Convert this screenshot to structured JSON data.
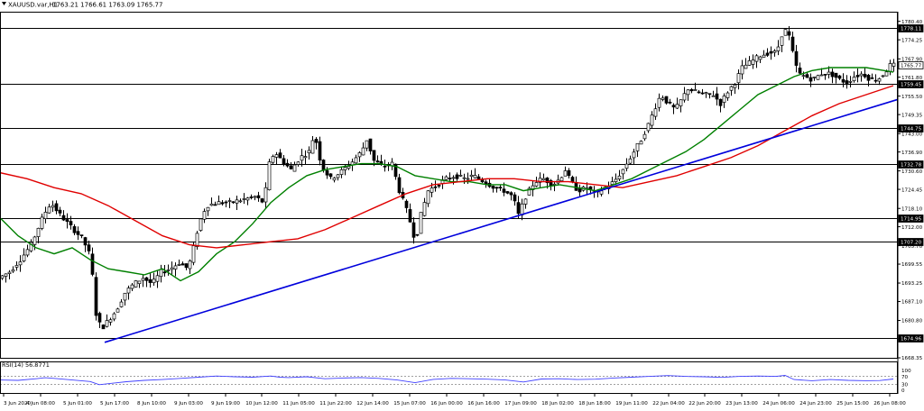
{
  "header": {
    "symbol": "XAUUSD.var,H1",
    "ohlc": "1763.21 1766.61 1763.09 1765.77"
  },
  "rsi_panel": {
    "label": "RSI(14) 56.8771",
    "scale_labels": [
      "100",
      "70",
      "30",
      "0"
    ]
  },
  "chart_data": [
    {
      "type": "line",
      "subtype": "candlestick",
      "title": "XAUUSD.var,H1",
      "ohlc_readout": {
        "open": 1763.21,
        "high": 1766.61,
        "low": 1763.09,
        "close": 1765.77
      },
      "y_axis_position": "right",
      "ylim": [
        1668.35,
        1783.6
      ],
      "y_ticks": [
        1780.4,
        1774.25,
        1767.9,
        1761.8,
        1755.5,
        1749.35,
        1743.0,
        1736.9,
        1730.6,
        1724.45,
        1718.1,
        1712.0,
        1705.7,
        1699.55,
        1693.25,
        1687.1,
        1680.8,
        1674.6,
        1668.35
      ],
      "x_labels": [
        "3 Jun 2020",
        "4 Jun 08:00",
        "5 Jun 01:00",
        "5 Jun 17:00",
        "8 Jun 10:00",
        "9 Jun 03:00",
        "9 Jun 19:00",
        "10 Jun 12:00",
        "11 Jun 05:00",
        "11 Jun 22:00",
        "12 Jun 14:00",
        "15 Jun 07:00",
        "16 Jun 00:00",
        "16 Jun 16:00",
        "17 Jun 09:00",
        "18 Jun 02:00",
        "18 Jun 18:00",
        "19 Jun 11:00",
        "22 Jun 04:00",
        "22 Jun 20:00",
        "23 Jun 13:00",
        "24 Jun 06:00",
        "24 Jun 23:00",
        "25 Jun 15:00",
        "26 Jun 08:00"
      ],
      "price_points": [
        [
          0,
          1694.5
        ],
        [
          14,
          1697
        ],
        [
          26,
          1701
        ],
        [
          38,
          1706
        ],
        [
          52,
          1716
        ],
        [
          60,
          1720
        ],
        [
          70,
          1716
        ],
        [
          82,
          1712
        ],
        [
          95,
          1708
        ],
        [
          104,
          1702
        ],
        [
          110,
          1683
        ],
        [
          116,
          1678
        ],
        [
          124,
          1681
        ],
        [
          132,
          1684
        ],
        [
          142,
          1690
        ],
        [
          152,
          1693
        ],
        [
          162,
          1695
        ],
        [
          172,
          1693
        ],
        [
          182,
          1697
        ],
        [
          192,
          1698
        ],
        [
          202,
          1700
        ],
        [
          212,
          1698
        ],
        [
          218,
          1705
        ],
        [
          224,
          1713
        ],
        [
          232,
          1719
        ],
        [
          244,
          1720
        ],
        [
          258,
          1720
        ],
        [
          272,
          1721
        ],
        [
          286,
          1722
        ],
        [
          296,
          1720
        ],
        [
          302,
          1733
        ],
        [
          308,
          1737
        ],
        [
          316,
          1734
        ],
        [
          326,
          1731
        ],
        [
          336,
          1735
        ],
        [
          346,
          1737
        ],
        [
          352,
          1743
        ],
        [
          360,
          1732
        ],
        [
          370,
          1728
        ],
        [
          380,
          1730
        ],
        [
          392,
          1733
        ],
        [
          404,
          1737
        ],
        [
          410,
          1741
        ],
        [
          418,
          1734
        ],
        [
          428,
          1732
        ],
        [
          438,
          1733
        ],
        [
          446,
          1724
        ],
        [
          456,
          1716
        ],
        [
          464,
          1707
        ],
        [
          470,
          1716
        ],
        [
          478,
          1724
        ],
        [
          488,
          1726
        ],
        [
          498,
          1728
        ],
        [
          508,
          1729
        ],
        [
          518,
          1728
        ],
        [
          528,
          1729
        ],
        [
          540,
          1727
        ],
        [
          552,
          1725
        ],
        [
          562,
          1724
        ],
        [
          572,
          1722
        ],
        [
          578,
          1716
        ],
        [
          586,
          1722
        ],
        [
          596,
          1727
        ],
        [
          606,
          1728
        ],
        [
          616,
          1726
        ],
        [
          624,
          1728
        ],
        [
          630,
          1731
        ],
        [
          636,
          1727
        ],
        [
          644,
          1724
        ],
        [
          654,
          1725
        ],
        [
          664,
          1723
        ],
        [
          674,
          1725
        ],
        [
          684,
          1727
        ],
        [
          694,
          1731
        ],
        [
          704,
          1736
        ],
        [
          714,
          1741
        ],
        [
          722,
          1746
        ],
        [
          730,
          1752
        ],
        [
          736,
          1756
        ],
        [
          744,
          1753
        ],
        [
          752,
          1751
        ],
        [
          760,
          1755
        ],
        [
          766,
          1758
        ],
        [
          774,
          1757
        ],
        [
          784,
          1756
        ],
        [
          794,
          1756
        ],
        [
          802,
          1753
        ],
        [
          810,
          1757
        ],
        [
          818,
          1760
        ],
        [
          826,
          1765
        ],
        [
          836,
          1767
        ],
        [
          846,
          1769
        ],
        [
          856,
          1770
        ],
        [
          864,
          1770
        ],
        [
          870,
          1776
        ],
        [
          876,
          1778
        ],
        [
          882,
          1770
        ],
        [
          888,
          1763
        ],
        [
          896,
          1762
        ],
        [
          904,
          1761
        ],
        [
          914,
          1763
        ],
        [
          924,
          1763
        ],
        [
          934,
          1761
        ],
        [
          942,
          1760
        ],
        [
          950,
          1762
        ],
        [
          960,
          1763
        ],
        [
          968,
          1761
        ],
        [
          976,
          1761
        ],
        [
          984,
          1763.2
        ],
        [
          990,
          1765.77
        ]
      ],
      "series": [
        {
          "label": "MA green",
          "color": "#008000",
          "values": [
            [
              0,
              1715
            ],
            [
              20,
              1709
            ],
            [
              40,
              1705
            ],
            [
              60,
              1703
            ],
            [
              80,
              1705
            ],
            [
              100,
              1701
            ],
            [
              120,
              1698
            ],
            [
              140,
              1697
            ],
            [
              160,
              1696
            ],
            [
              180,
              1698
            ],
            [
              200,
              1694
            ],
            [
              220,
              1697
            ],
            [
              240,
              1703
            ],
            [
              260,
              1707
            ],
            [
              280,
              1713
            ],
            [
              300,
              1720
            ],
            [
              320,
              1725
            ],
            [
              340,
              1729
            ],
            [
              360,
              1731
            ],
            [
              380,
              1732
            ],
            [
              400,
              1733
            ],
            [
              420,
              1733
            ],
            [
              440,
              1732
            ],
            [
              460,
              1729
            ],
            [
              480,
              1728
            ],
            [
              500,
              1727
            ],
            [
              520,
              1727
            ],
            [
              540,
              1726
            ],
            [
              560,
              1726
            ],
            [
              580,
              1724
            ],
            [
              600,
              1725
            ],
            [
              620,
              1726
            ],
            [
              640,
              1725
            ],
            [
              660,
              1724
            ],
            [
              680,
              1726
            ],
            [
              700,
              1728
            ],
            [
              720,
              1731
            ],
            [
              740,
              1734
            ],
            [
              760,
              1737
            ],
            [
              780,
              1741
            ],
            [
              800,
              1746
            ],
            [
              820,
              1751
            ],
            [
              840,
              1756
            ],
            [
              860,
              1759
            ],
            [
              880,
              1762
            ],
            [
              900,
              1764
            ],
            [
              920,
              1765
            ],
            [
              940,
              1765
            ],
            [
              960,
              1765
            ],
            [
              980,
              1764
            ],
            [
              990,
              1763.5
            ]
          ]
        },
        {
          "label": "MA red",
          "color": "#e00000",
          "values": [
            [
              0,
              1730
            ],
            [
              30,
              1728
            ],
            [
              60,
              1725
            ],
            [
              90,
              1723
            ],
            [
              120,
              1719
            ],
            [
              150,
              1714
            ],
            [
              180,
              1709
            ],
            [
              210,
              1706
            ],
            [
              240,
              1705
            ],
            [
              270,
              1706
            ],
            [
              300,
              1707
            ],
            [
              330,
              1708
            ],
            [
              360,
              1711
            ],
            [
              390,
              1715
            ],
            [
              420,
              1719
            ],
            [
              450,
              1723
            ],
            [
              480,
              1726
            ],
            [
              510,
              1727
            ],
            [
              540,
              1728
            ],
            [
              570,
              1728
            ],
            [
              600,
              1727
            ],
            [
              630,
              1727
            ],
            [
              660,
              1726
            ],
            [
              690,
              1725
            ],
            [
              720,
              1727
            ],
            [
              750,
              1729
            ],
            [
              780,
              1732
            ],
            [
              810,
              1735
            ],
            [
              840,
              1739
            ],
            [
              870,
              1744
            ],
            [
              900,
              1749
            ],
            [
              930,
              1753
            ],
            [
              960,
              1756
            ],
            [
              990,
              1759
            ]
          ]
        },
        {
          "label": "Trendline",
          "color": "#0000dc",
          "values": [
            [
              116,
              1673.5
            ],
            [
              995,
              1754.4
            ]
          ]
        }
      ],
      "horizontal_levels": [
        {
          "value": 1778.11,
          "label": "1778.11"
        },
        {
          "value": 1765.77,
          "label": "1765.77",
          "badge": "current"
        },
        {
          "value": 1759.45,
          "label": "1759.45"
        },
        {
          "value": 1744.75,
          "label": "1744.75"
        },
        {
          "value": 1732.78,
          "label": "1732.78"
        },
        {
          "value": 1714.95,
          "label": "1714.95"
        },
        {
          "value": 1707.2,
          "label": "1707.20"
        },
        {
          "value": 1674.96,
          "label": "1674.96"
        }
      ]
    },
    {
      "type": "line",
      "title": "RSI(14) 56.8771",
      "ylim": [
        0,
        100
      ],
      "y_ticks": [
        100,
        70,
        30,
        0
      ],
      "levels": [
        70,
        30
      ],
      "series": [
        {
          "label": "RSI",
          "color": "#4040ff",
          "values": [
            [
              0,
              52
            ],
            [
              20,
              50
            ],
            [
              40,
              58
            ],
            [
              50,
              63
            ],
            [
              60,
              60
            ],
            [
              80,
              52
            ],
            [
              100,
              44
            ],
            [
              110,
              28
            ],
            [
              120,
              33
            ],
            [
              140,
              43
            ],
            [
              160,
              50
            ],
            [
              180,
              54
            ],
            [
              200,
              60
            ],
            [
              220,
              66
            ],
            [
              240,
              72
            ],
            [
              260,
              68
            ],
            [
              280,
              66
            ],
            [
              300,
              72
            ],
            [
              310,
              66
            ],
            [
              320,
              64
            ],
            [
              340,
              68
            ],
            [
              360,
              58
            ],
            [
              380,
              62
            ],
            [
              400,
              64
            ],
            [
              420,
              60
            ],
            [
              440,
              52
            ],
            [
              460,
              38
            ],
            [
              480,
              55
            ],
            [
              500,
              60
            ],
            [
              520,
              58
            ],
            [
              540,
              56
            ],
            [
              560,
              52
            ],
            [
              580,
              42
            ],
            [
              600,
              57
            ],
            [
              620,
              58
            ],
            [
              640,
              54
            ],
            [
              660,
              56
            ],
            [
              680,
              62
            ],
            [
              700,
              66
            ],
            [
              720,
              70
            ],
            [
              740,
              74
            ],
            [
              760,
              70
            ],
            [
              780,
              68
            ],
            [
              800,
              65
            ],
            [
              820,
              70
            ],
            [
              840,
              72
            ],
            [
              860,
              70
            ],
            [
              870,
              75
            ],
            [
              880,
              54
            ],
            [
              900,
              48
            ],
            [
              920,
              54
            ],
            [
              940,
              50
            ],
            [
              960,
              48
            ],
            [
              975,
              49
            ],
            [
              990,
              56.88
            ]
          ]
        }
      ]
    }
  ]
}
